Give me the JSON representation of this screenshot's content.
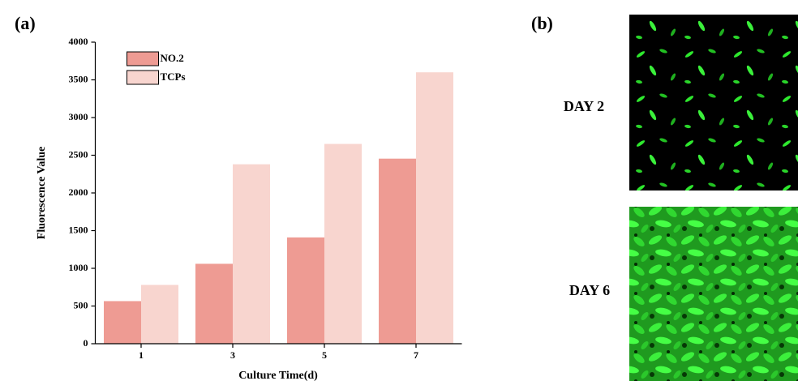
{
  "chart_data": {
    "type": "bar",
    "xlabel": "Culture Time(d)",
    "ylabel": "Fluorescence Value",
    "categories": [
      "1",
      "3",
      "5",
      "7"
    ],
    "series": [
      {
        "name": "NO.2",
        "color": "#ee9b93",
        "values": [
          565,
          1060,
          1410,
          2455
        ]
      },
      {
        "name": "TCPs",
        "color": "#f8d5cf",
        "values": [
          780,
          2380,
          2650,
          3600
        ]
      }
    ],
    "ylim": [
      0,
      4000
    ],
    "yticks": [
      0,
      500,
      1000,
      1500,
      2000,
      2500,
      3000,
      3500,
      4000
    ],
    "grid": false,
    "legend": "top-left"
  },
  "panels": {
    "a": "(a)",
    "b": "(b)"
  },
  "images": [
    {
      "label": "DAY 2"
    },
    {
      "label": "DAY 6"
    }
  ]
}
